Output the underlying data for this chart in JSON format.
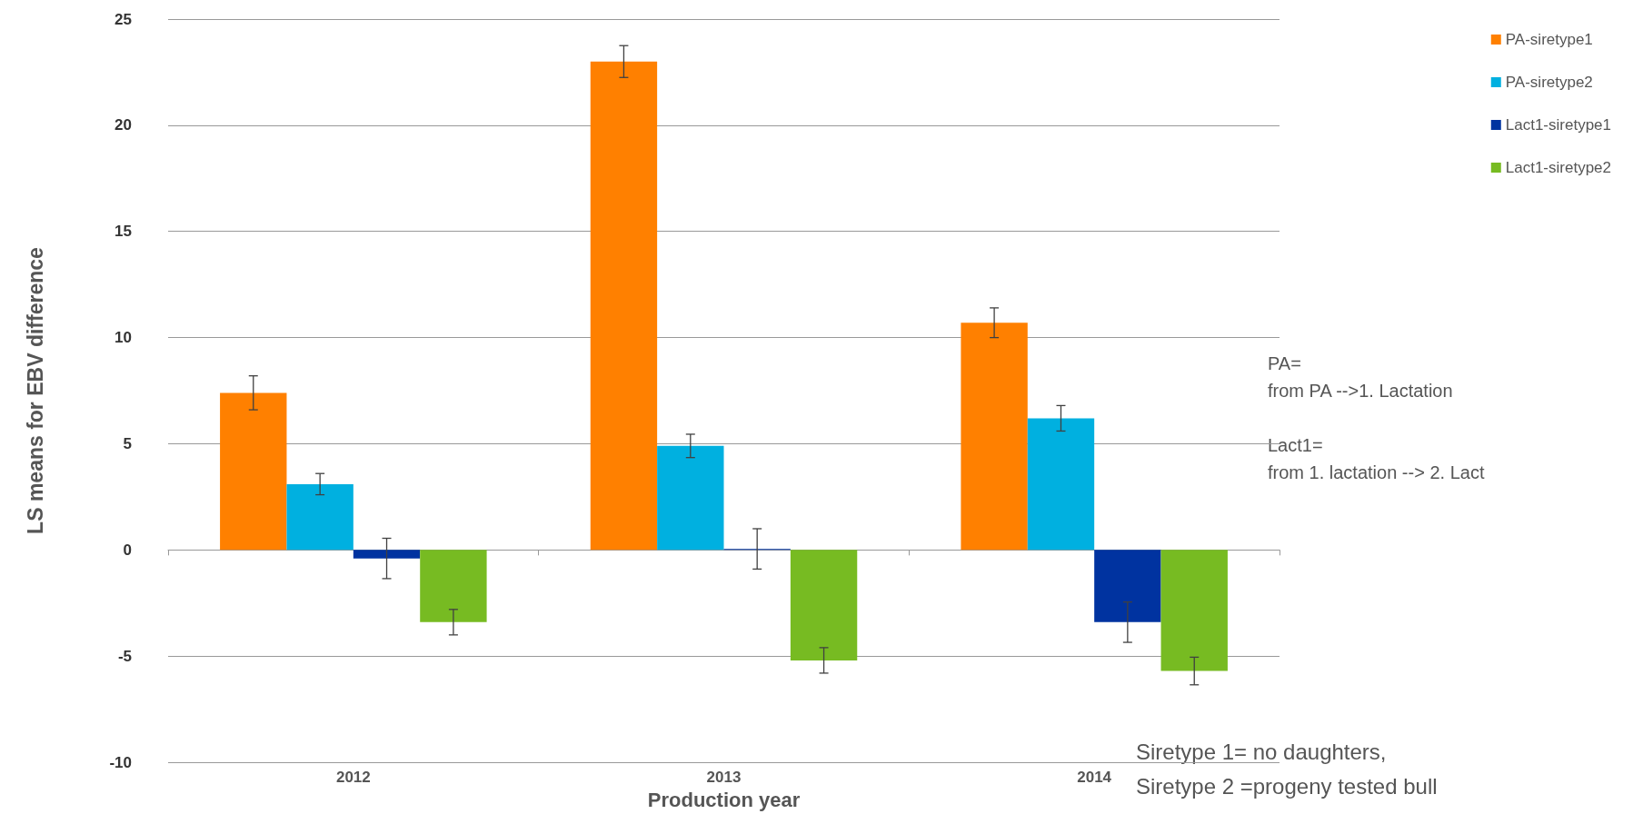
{
  "chart_data": {
    "type": "bar",
    "xlabel": "Production year",
    "ylabel": "LS means for EBV difference",
    "categories": [
      "2012",
      "2013",
      "2014"
    ],
    "series": [
      {
        "name": "PA-siretype1",
        "color": "#ff8000",
        "values": [
          7.4,
          23.0,
          10.7
        ],
        "errors": [
          0.8,
          0.75,
          0.7
        ]
      },
      {
        "name": "PA-siretype2",
        "color": "#00b0e0",
        "values": [
          3.1,
          4.9,
          6.2
        ],
        "errors": [
          0.5,
          0.55,
          0.6
        ]
      },
      {
        "name": "Lact1-siretype1",
        "color": "#0033a0",
        "values": [
          -0.4,
          0.05,
          -3.4
        ],
        "errors": [
          0.95,
          0.95,
          0.95
        ]
      },
      {
        "name": "Lact1-siretype2",
        "color": "#77bb22",
        "values": [
          -3.4,
          -5.2,
          -5.7
        ],
        "errors": [
          0.6,
          0.6,
          0.65
        ]
      }
    ],
    "ylim": [
      -10,
      25
    ],
    "yticks": [
      -10,
      -5,
      0,
      5,
      10,
      15,
      20,
      25
    ],
    "grid": "y",
    "legend": "top right",
    "annotations": [
      "PA=",
      "from PA -->1. Lactation",
      "Lact1=",
      "from 1. lactation --> 2. Lact",
      "Siretype 1= no daughters,",
      "Siretype 2 =progeny tested bull"
    ]
  }
}
